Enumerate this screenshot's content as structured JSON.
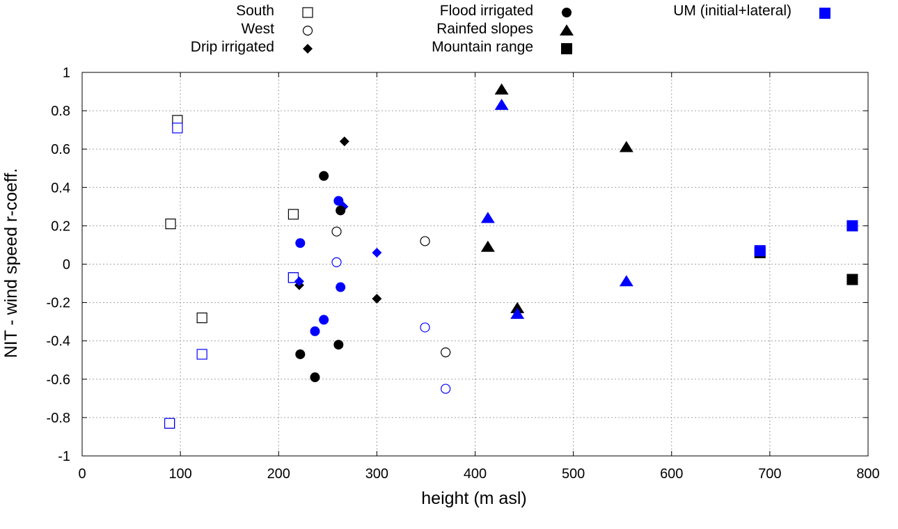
{
  "chart_data": {
    "type": "scatter",
    "title": "",
    "xlabel": "height (m asl)",
    "ylabel": "NIT - wind speed r-coeff.",
    "xlim": [
      0,
      800
    ],
    "ylim": [
      -1,
      1
    ],
    "xticks": [
      0,
      100,
      200,
      300,
      400,
      500,
      600,
      700,
      800
    ],
    "yticks": [
      -1,
      -0.8,
      -0.6,
      -0.4,
      -0.2,
      0,
      0.2,
      0.4,
      0.6,
      0.8,
      1
    ],
    "xtick_labels": [
      "0",
      "100",
      "200",
      "300",
      "400",
      "500",
      "600",
      "700",
      "800"
    ],
    "ytick_labels": [
      "-1",
      "-0.8",
      "-0.6",
      "-0.4",
      "-0.2",
      "0",
      "0.2",
      "0.4",
      "0.6",
      "0.8",
      "1"
    ],
    "grid": true,
    "legend_position": "top",
    "colors": {
      "observed": "#000000",
      "um": "#0000ff"
    },
    "legend": [
      {
        "label": "South",
        "marker": "open-square",
        "color": "#000000"
      },
      {
        "label": "West",
        "marker": "open-circle",
        "color": "#000000"
      },
      {
        "label": "Drip irrigated",
        "marker": "filled-diamond",
        "color": "#000000"
      },
      {
        "label": "Flood irrigated",
        "marker": "filled-circle",
        "color": "#000000"
      },
      {
        "label": "Rainfed slopes",
        "marker": "filled-triangle",
        "color": "#000000"
      },
      {
        "label": "Mountain range",
        "marker": "filled-square",
        "color": "#000000"
      },
      {
        "label": "UM (initial+lateral)",
        "marker": "filled-square",
        "color": "#0000ff"
      }
    ],
    "series": [
      {
        "name": "South",
        "marker": "open-square",
        "color": "#000000",
        "points": [
          [
            97,
            0.75
          ],
          [
            90,
            0.21
          ],
          [
            215,
            0.26
          ],
          [
            215,
            -0.07
          ],
          [
            122,
            -0.28
          ],
          [
            89,
            -0.83
          ]
        ]
      },
      {
        "name": "South (UM)",
        "marker": "open-square",
        "color": "#0000ff",
        "points": [
          [
            97,
            0.71
          ],
          [
            215,
            -0.07
          ],
          [
            122,
            -0.47
          ],
          [
            89,
            -0.83
          ]
        ]
      },
      {
        "name": "West",
        "marker": "open-circle",
        "color": "#000000",
        "points": [
          [
            259,
            0.17
          ],
          [
            349,
            0.12
          ],
          [
            370,
            -0.46
          ]
        ]
      },
      {
        "name": "West (UM)",
        "marker": "open-circle",
        "color": "#0000ff",
        "points": [
          [
            259,
            0.01
          ],
          [
            349,
            -0.33
          ],
          [
            370,
            -0.65
          ]
        ]
      },
      {
        "name": "Drip irrigated",
        "marker": "filled-diamond",
        "color": "#000000",
        "points": [
          [
            267,
            0.64
          ],
          [
            221,
            -0.11
          ],
          [
            300,
            -0.18
          ]
        ]
      },
      {
        "name": "Drip irrigated (UM)",
        "marker": "filled-diamond",
        "color": "#0000ff",
        "points": [
          [
            266,
            0.3
          ],
          [
            221,
            -0.09
          ],
          [
            300,
            0.06
          ]
        ]
      },
      {
        "name": "Flood irrigated",
        "marker": "filled-circle",
        "color": "#000000",
        "points": [
          [
            246,
            0.46
          ],
          [
            263,
            0.28
          ],
          [
            222,
            -0.47
          ],
          [
            261,
            -0.42
          ],
          [
            237,
            -0.59
          ]
        ]
      },
      {
        "name": "Flood irrigated (UM)",
        "marker": "filled-circle",
        "color": "#0000ff",
        "points": [
          [
            261,
            0.33
          ],
          [
            222,
            0.11
          ],
          [
            263,
            -0.12
          ],
          [
            246,
            -0.29
          ],
          [
            237,
            -0.35
          ]
        ]
      },
      {
        "name": "Rainfed slopes",
        "marker": "filled-triangle",
        "color": "#000000",
        "points": [
          [
            427,
            0.91
          ],
          [
            554,
            0.61
          ],
          [
            413,
            0.09
          ],
          [
            443,
            -0.23
          ]
        ]
      },
      {
        "name": "Rainfed slopes (UM)",
        "marker": "filled-triangle",
        "color": "#0000ff",
        "points": [
          [
            427,
            0.83
          ],
          [
            413,
            0.24
          ],
          [
            554,
            -0.09
          ],
          [
            443,
            -0.26
          ]
        ]
      },
      {
        "name": "Mountain range",
        "marker": "filled-square",
        "color": "#000000",
        "points": [
          [
            690,
            0.06
          ],
          [
            784,
            -0.08
          ]
        ]
      },
      {
        "name": "Mountain range (UM)",
        "marker": "filled-square",
        "color": "#0000ff",
        "points": [
          [
            690,
            0.07
          ],
          [
            784,
            0.2
          ]
        ]
      }
    ]
  }
}
